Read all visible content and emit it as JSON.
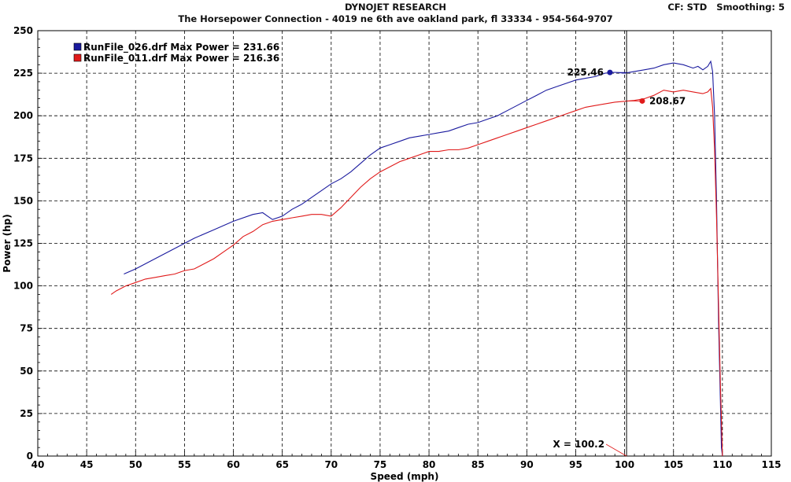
{
  "header": {
    "title": "DYNOJET RESEARCH",
    "subtitle": "The Horsepower Connection - 4019 ne 6th ave oakland park, fl 33334 - 954-564-9707",
    "cf_label": "CF: STD",
    "smoothing_label": "Smoothing: 5"
  },
  "colors": {
    "series_blue": "#1a1a9e",
    "series_red": "#e01a1a",
    "grid": "#000000",
    "cursor_line": "#000000",
    "background": "#ffffff"
  },
  "cursor": {
    "x_label": "X = 100.2",
    "x_value": 100.2
  },
  "chart_data": {
    "type": "line",
    "xlabel": "Speed (mph)",
    "ylabel": "Power (hp)",
    "xlim": [
      40,
      115
    ],
    "ylim": [
      0,
      250
    ],
    "xticks": [
      40,
      45,
      50,
      55,
      60,
      65,
      70,
      75,
      80,
      85,
      90,
      95,
      100,
      105,
      110,
      115
    ],
    "yticks": [
      0,
      25,
      50,
      75,
      100,
      125,
      150,
      175,
      200,
      225,
      250
    ],
    "grid": true,
    "legend_position": "top-left",
    "series": [
      {
        "name": "RunFile_026.drf Max Power = 231.66",
        "color": "#1a1a9e",
        "marker_x": 98.5,
        "marker_y": 225.46,
        "marker_label": "225.46",
        "marker_label_side": "left",
        "points": [
          [
            48.8,
            107
          ],
          [
            50,
            110
          ],
          [
            52,
            116
          ],
          [
            54,
            122
          ],
          [
            56,
            128
          ],
          [
            58,
            133
          ],
          [
            60,
            138
          ],
          [
            62,
            142
          ],
          [
            63,
            143
          ],
          [
            63.5,
            141
          ],
          [
            64,
            139
          ],
          [
            65,
            141
          ],
          [
            66,
            145
          ],
          [
            67,
            148
          ],
          [
            68,
            152
          ],
          [
            69,
            156
          ],
          [
            70,
            160
          ],
          [
            71,
            163
          ],
          [
            72,
            167
          ],
          [
            73,
            172
          ],
          [
            74,
            177
          ],
          [
            75,
            181
          ],
          [
            76,
            183
          ],
          [
            77,
            185
          ],
          [
            78,
            187
          ],
          [
            79,
            188
          ],
          [
            80,
            189
          ],
          [
            81,
            190
          ],
          [
            82,
            191
          ],
          [
            83,
            193
          ],
          [
            84,
            195
          ],
          [
            85,
            196
          ],
          [
            86,
            198
          ],
          [
            87,
            200
          ],
          [
            88,
            203
          ],
          [
            89,
            206
          ],
          [
            90,
            209
          ],
          [
            91,
            212
          ],
          [
            92,
            215
          ],
          [
            93,
            217
          ],
          [
            94,
            219
          ],
          [
            95,
            221
          ],
          [
            96,
            222
          ],
          [
            97,
            223
          ],
          [
            98,
            225
          ],
          [
            99,
            225.5
          ],
          [
            100,
            225
          ],
          [
            101,
            226
          ],
          [
            102,
            227
          ],
          [
            103,
            228
          ],
          [
            104,
            230
          ],
          [
            105,
            231
          ],
          [
            106,
            230
          ],
          [
            107,
            228
          ],
          [
            107.5,
            229
          ],
          [
            108,
            227
          ],
          [
            108.5,
            229
          ],
          [
            108.8,
            232
          ],
          [
            109,
            226
          ],
          [
            109.2,
            200
          ],
          [
            109.4,
            150
          ],
          [
            109.6,
            80
          ],
          [
            109.8,
            30
          ],
          [
            109.9,
            5
          ],
          [
            110,
            0
          ]
        ]
      },
      {
        "name": "RunFile_011.drf Max Power = 216.36",
        "color": "#e01a1a",
        "marker_x": 101.8,
        "marker_y": 208.67,
        "marker_label": "208.67",
        "marker_label_side": "right",
        "points": [
          [
            47.5,
            95
          ],
          [
            48,
            97
          ],
          [
            49,
            100
          ],
          [
            50,
            102
          ],
          [
            51,
            104
          ],
          [
            52,
            105
          ],
          [
            53,
            106
          ],
          [
            54,
            107
          ],
          [
            55,
            109
          ],
          [
            56,
            110
          ],
          [
            57,
            113
          ],
          [
            58,
            116
          ],
          [
            59,
            120
          ],
          [
            60,
            124
          ],
          [
            61,
            129
          ],
          [
            62,
            132
          ],
          [
            63,
            136
          ],
          [
            64,
            138
          ],
          [
            65,
            139
          ],
          [
            66,
            140
          ],
          [
            67,
            141
          ],
          [
            68,
            142
          ],
          [
            69,
            142
          ],
          [
            70,
            141
          ],
          [
            71,
            146
          ],
          [
            72,
            152
          ],
          [
            73,
            158
          ],
          [
            74,
            163
          ],
          [
            75,
            167
          ],
          [
            76,
            170
          ],
          [
            77,
            173
          ],
          [
            78,
            175
          ],
          [
            79,
            177
          ],
          [
            80,
            179
          ],
          [
            81,
            179
          ],
          [
            82,
            180
          ],
          [
            83,
            180
          ],
          [
            84,
            181
          ],
          [
            85,
            183
          ],
          [
            86,
            185
          ],
          [
            87,
            187
          ],
          [
            88,
            189
          ],
          [
            89,
            191
          ],
          [
            90,
            193
          ],
          [
            91,
            195
          ],
          [
            92,
            197
          ],
          [
            93,
            199
          ],
          [
            94,
            201
          ],
          [
            95,
            203
          ],
          [
            96,
            205
          ],
          [
            97,
            206
          ],
          [
            98,
            207
          ],
          [
            99,
            208
          ],
          [
            100,
            208.5
          ],
          [
            101,
            209
          ],
          [
            102,
            210
          ],
          [
            103,
            212
          ],
          [
            104,
            215
          ],
          [
            105,
            214
          ],
          [
            106,
            215
          ],
          [
            107,
            214
          ],
          [
            108,
            213
          ],
          [
            108.5,
            214
          ],
          [
            108.8,
            216
          ],
          [
            109,
            205
          ],
          [
            109.2,
            180
          ],
          [
            109.4,
            140
          ],
          [
            109.6,
            90
          ],
          [
            109.8,
            40
          ],
          [
            110,
            0
          ]
        ]
      }
    ]
  }
}
